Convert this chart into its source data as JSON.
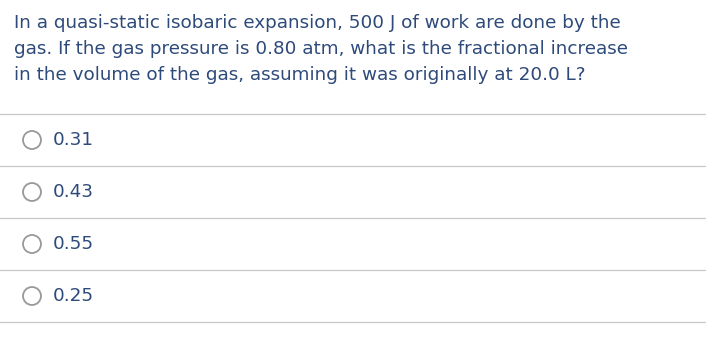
{
  "question_lines": [
    "In a quasi-static isobaric expansion, 500 J of work are done by the",
    "gas. If the gas pressure is 0.80 atm, what is the fractional increase",
    "in the volume of the gas, assuming it was originally at 20.0 L?"
  ],
  "options": [
    "0.31",
    "0.43",
    "0.55",
    "0.25"
  ],
  "text_color": "#2e4a7a",
  "background_color": "#ffffff",
  "line_color": "#c8c8c8",
  "question_fontsize": 13.2,
  "option_fontsize": 13.2,
  "circle_color": "#999999"
}
